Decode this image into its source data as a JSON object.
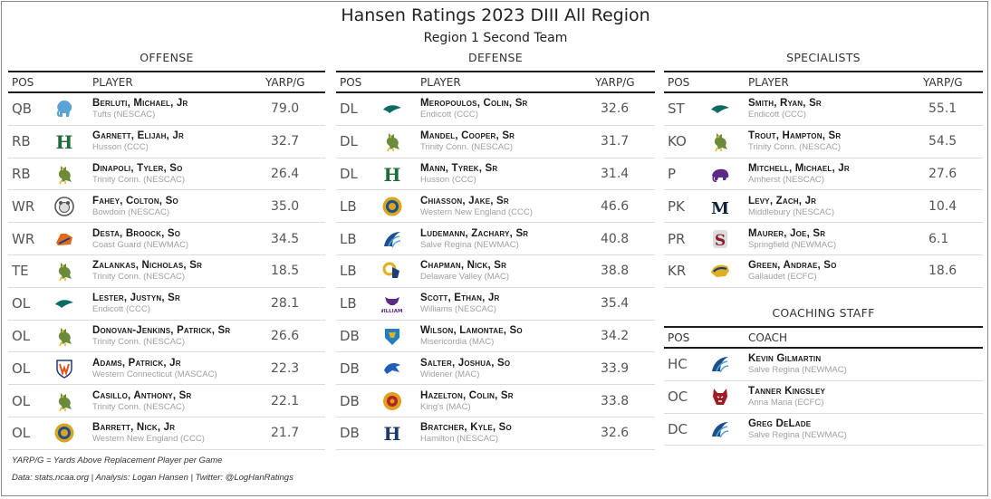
{
  "title": "Hansen Ratings 2023 DIII All Region",
  "subtitle": "Region 1 Second Team",
  "headers": {
    "pos": "POS",
    "player": "PLAYER",
    "yarp": "YARP/G",
    "coach": "COACH"
  },
  "offense": {
    "title": "OFFENSE",
    "rows": [
      {
        "pos": "QB",
        "name": "Berluti, Michael, Jr",
        "team": "Tufts (NESCAC)",
        "yarp": "79.0",
        "logo": "elephant-icon",
        "color": "#5ba3d6"
      },
      {
        "pos": "RB",
        "name": "Garnett, Elijah, Jr",
        "team": "Husson (CCC)",
        "yarp": "32.7",
        "logo": "letter-h-icon",
        "color": "#1e6b3c"
      },
      {
        "pos": "RB",
        "name": "Dinapoli, Tyler, So",
        "team": "Trinity Conn. (NESCAC)",
        "yarp": "26.4",
        "logo": "bantam-icon",
        "color": "#6b8a3a"
      },
      {
        "pos": "WR",
        "name": "Fahey, Colton, So",
        "team": "Bowdoin (NESCAC)",
        "yarp": "35.0",
        "logo": "polar-bear-icon",
        "color": "#555555"
      },
      {
        "pos": "WR",
        "name": "Desta, Broock, So",
        "team": "Coast Guard (NEWMAC)",
        "yarp": "34.5",
        "logo": "bear-icon",
        "color": "#e06a1c"
      },
      {
        "pos": "TE",
        "name": "Zalankas, Nicholas, Sr",
        "team": "Trinity Conn. (NESCAC)",
        "yarp": "18.5",
        "logo": "bantam-icon",
        "color": "#6b8a3a"
      },
      {
        "pos": "OL",
        "name": "Lester, Justyn, Sr",
        "team": "Endicott (CCC)",
        "yarp": "28.1",
        "logo": "gull-icon",
        "color": "#0e6b62"
      },
      {
        "pos": "OL",
        "name": "Donovan-Jenkins, Patrick, Sr",
        "team": "Trinity Conn. (NESCAC)",
        "yarp": "26.6",
        "logo": "bantam-icon",
        "color": "#6b8a3a"
      },
      {
        "pos": "OL",
        "name": "Adams, Patrick, Jr",
        "team": "Western Connecticut (MASCAC)",
        "yarp": "22.3",
        "logo": "shield-w-icon",
        "color": "#e2541d"
      },
      {
        "pos": "OL",
        "name": "Casillo, Anthony, Sr",
        "team": "Trinity Conn. (NESCAC)",
        "yarp": "22.1",
        "logo": "bantam-icon",
        "color": "#6b8a3a"
      },
      {
        "pos": "OL",
        "name": "Barrett, Nick, Jr",
        "team": "Western New England (CCC)",
        "yarp": "21.7",
        "logo": "seal-icon",
        "color": "#d9a520"
      }
    ]
  },
  "defense": {
    "title": "DEFENSE",
    "rows": [
      {
        "pos": "DL",
        "name": "Meropoulos, Colin, Sr",
        "team": "Endicott (CCC)",
        "yarp": "32.6",
        "logo": "gull-icon",
        "color": "#0e6b62"
      },
      {
        "pos": "DL",
        "name": "Mandel, Cooper, Sr",
        "team": "Trinity Conn. (NESCAC)",
        "yarp": "31.7",
        "logo": "bantam-icon",
        "color": "#6b8a3a"
      },
      {
        "pos": "DL",
        "name": "Mann, Tyrek, Sr",
        "team": "Husson (CCC)",
        "yarp": "31.4",
        "logo": "letter-h-icon",
        "color": "#1e6b3c"
      },
      {
        "pos": "LB",
        "name": "Chiasson, Jake, Sr",
        "team": "Western New England (CCC)",
        "yarp": "46.6",
        "logo": "seal-icon",
        "color": "#d9a520"
      },
      {
        "pos": "LB",
        "name": "Ludemann, Zachary, Sr",
        "team": "Salve Regina (NEWMAC)",
        "yarp": "40.8",
        "logo": "wave-icon",
        "color": "#1c4f8c"
      },
      {
        "pos": "LB",
        "name": "Chapman, Nick, Sr",
        "team": "Delaware Valley (MAC)",
        "yarp": "38.8",
        "logo": "ram-icon",
        "color": "#e0b020"
      },
      {
        "pos": "LB",
        "name": "Scott, Ethan, Jr",
        "team": "Williams (NESCAC)",
        "yarp": "35.4",
        "logo": "cow-icon",
        "color": "#5b2a86"
      },
      {
        "pos": "DB",
        "name": "Wilson, Lamontae, So",
        "team": "Misericordia (MAC)",
        "yarp": "34.2",
        "logo": "cougar-icon",
        "color": "#1f7fc1"
      },
      {
        "pos": "DB",
        "name": "Salter, Joshua, So",
        "team": "Widener (MAC)",
        "yarp": "33.9",
        "logo": "pride-icon",
        "color": "#1f5fb5"
      },
      {
        "pos": "DB",
        "name": "Hazelton, Colin, Sr",
        "team": "King's (MAC)",
        "yarp": "33.8",
        "logo": "lion-icon",
        "color": "#b32424"
      },
      {
        "pos": "DB",
        "name": "Bratcher, Kyle, So",
        "team": "Hamilton (NESCAC)",
        "yarp": "32.6",
        "logo": "letter-h-icon",
        "color": "#1b3a6b"
      }
    ]
  },
  "specialists": {
    "title": "SPECIALISTS",
    "rows": [
      {
        "pos": "ST",
        "name": "Smith, Ryan, Sr",
        "team": "Endicott (CCC)",
        "yarp": "55.1",
        "logo": "gull-icon",
        "color": "#0e6b62"
      },
      {
        "pos": "KO",
        "name": "Trout, Hampton, Sr",
        "team": "Trinity Conn. (NESCAC)",
        "yarp": "54.5",
        "logo": "bantam-icon",
        "color": "#6b8a3a"
      },
      {
        "pos": "P",
        "name": "Mitchell, Michael, Jr",
        "team": "Amherst (NESCAC)",
        "yarp": "27.6",
        "logo": "mammoth-icon",
        "color": "#5b2a86"
      },
      {
        "pos": "PK",
        "name": "Levy, Zach, Jr",
        "team": "Middlebury (NESCAC)",
        "yarp": "10.4",
        "logo": "letter-m-icon",
        "color": "#0d2240"
      },
      {
        "pos": "PR",
        "name": "Maurer, Joe, Sr",
        "team": "Springfield (NEWMAC)",
        "yarp": "6.1",
        "logo": "letter-s-icon",
        "color": "#8a1c2b"
      },
      {
        "pos": "KR",
        "name": "Green, Andrae, So",
        "team": "Gallaudet (ECFC)",
        "yarp": "18.6",
        "logo": "bison-icon",
        "color": "#1c3d7a"
      }
    ]
  },
  "coaching": {
    "title": "COACHING STAFF",
    "rows": [
      {
        "pos": "HC",
        "name": "Kevin Gilmartin",
        "team": "Salve Regina (NEWMAC)",
        "logo": "wave-icon",
        "color": "#1c4f8c"
      },
      {
        "pos": "OC",
        "name": "Tanner Kingsley",
        "team": "Anna Maria (ECFC)",
        "logo": "wolf-icon",
        "color": "#a01c24"
      },
      {
        "pos": "DC",
        "name": "Greg DeLade",
        "team": "Salve Regina (NEWMAC)",
        "logo": "wave-icon",
        "color": "#1c4f8c"
      }
    ]
  },
  "footnote": "YARP/G = Yards Above Replacement Player per Game",
  "credits": "Data: stats.ncaa.org | Analysis: Logan Hansen | Twitter: @LogHanRatings"
}
